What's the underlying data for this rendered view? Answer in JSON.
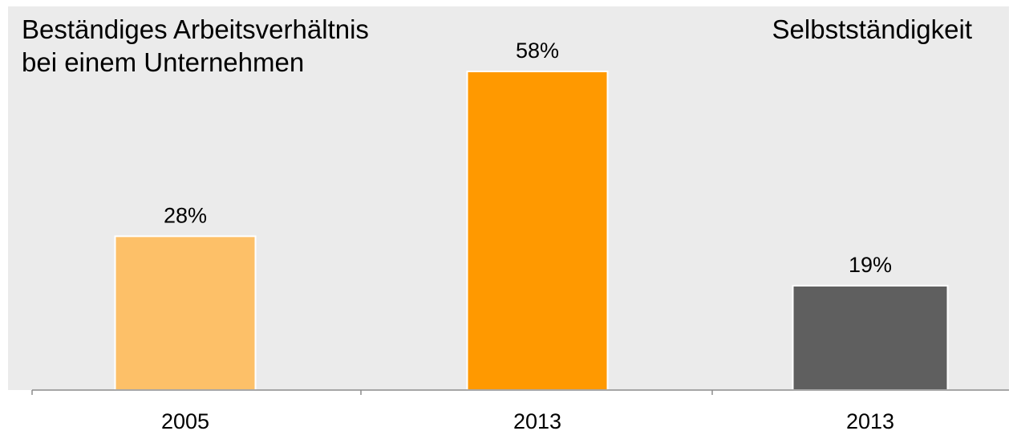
{
  "chart_data": {
    "type": "bar",
    "categories": [
      "2005",
      "2013",
      "2013"
    ],
    "values": [
      28,
      58,
      19
    ],
    "value_labels": [
      "28%",
      "58%",
      "19%"
    ],
    "groups": [
      {
        "title": "Beständiges Arbeitsverhältnis bei einem Unternehmen",
        "title_lines": [
          "Beständiges Arbeitsverhältnis",
          "bei einem Unternehmen"
        ],
        "bars": [
          0,
          1
        ]
      },
      {
        "title": "Selbstständigkeit",
        "title_lines": [
          "Selbstständigkeit"
        ],
        "bars": [
          2
        ]
      }
    ],
    "colors": [
      "#FDC068",
      "#FF9900",
      "#5F5F5F"
    ],
    "background_color": "#EBEBEB",
    "ylim": [
      0,
      58
    ],
    "grid": false,
    "legend": "none"
  }
}
